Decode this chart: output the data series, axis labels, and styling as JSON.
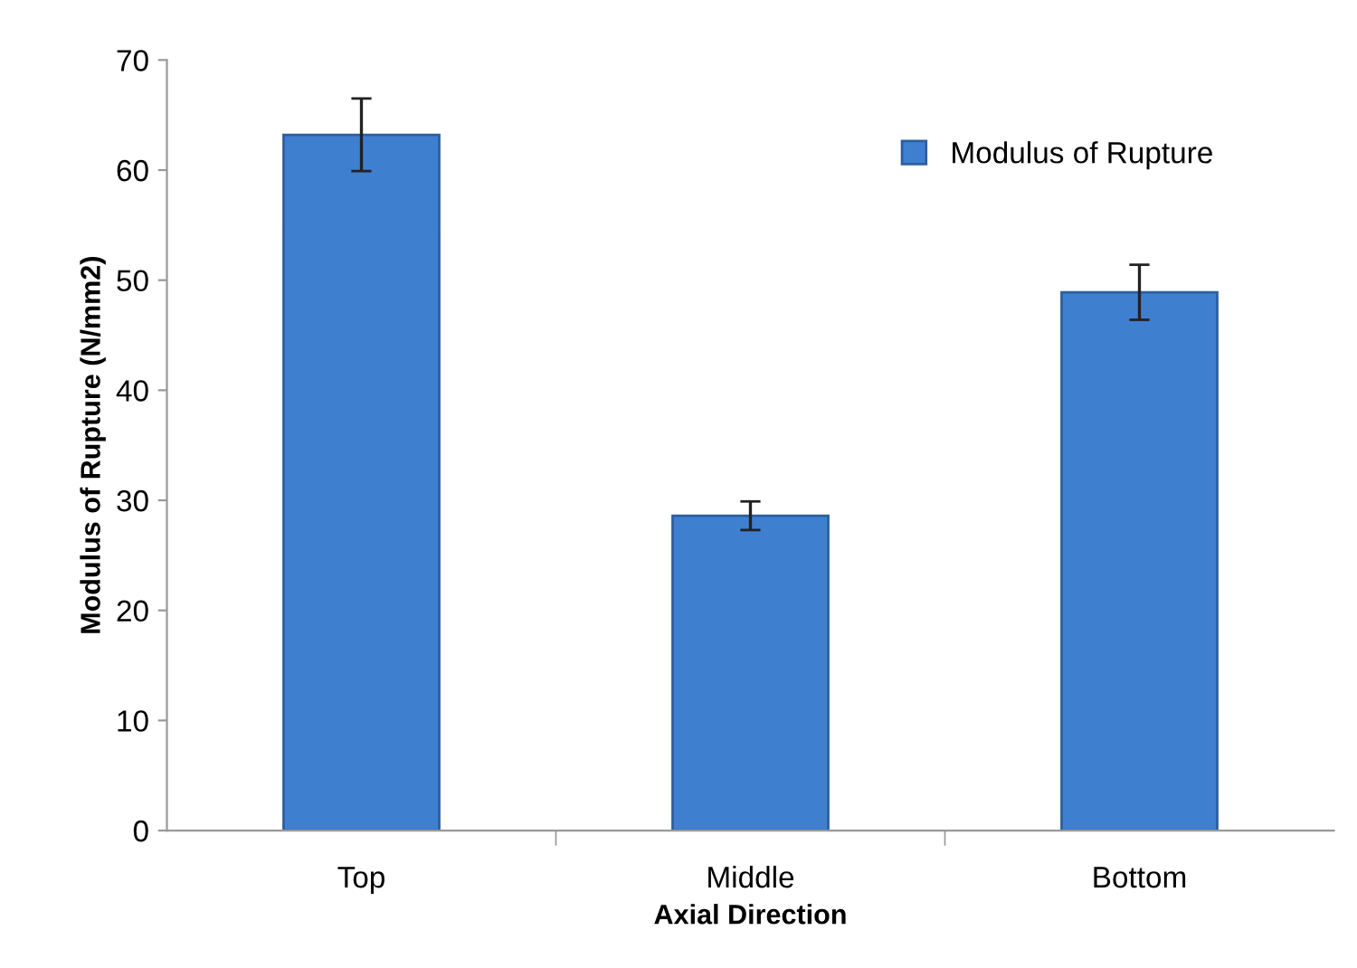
{
  "chart_data": {
    "type": "bar",
    "xlabel": "Axial Direction",
    "ylabel": "Modulus of Rupture (N/mm2)",
    "categories": [
      "Top",
      "Middle",
      "Bottom"
    ],
    "series": [
      {
        "name": "Modulus of Rupture",
        "color": "#3f7fd0",
        "values": [
          63.2,
          28.6,
          48.9
        ],
        "errors": [
          3.3,
          1.3,
          2.5
        ]
      }
    ],
    "ylim": [
      0,
      70
    ],
    "yticks": [
      0,
      10,
      20,
      30,
      40,
      50,
      60,
      70
    ],
    "grid": false,
    "legend": "top right"
  }
}
